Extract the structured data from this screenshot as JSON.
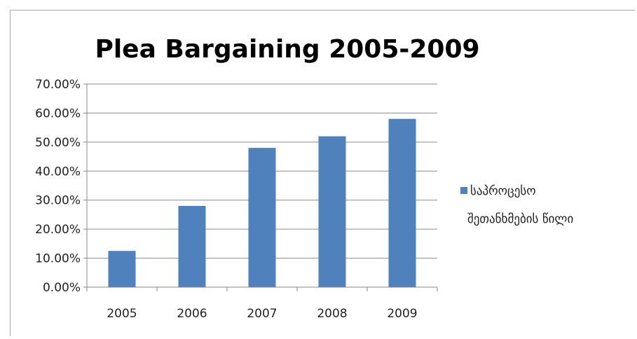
{
  "chart_data": {
    "type": "bar",
    "title": "Plea Bargaining 2005-2009",
    "categories": [
      "2005",
      "2006",
      "2007",
      "2008",
      "2009"
    ],
    "series": [
      {
        "name": "საპროცესო შეთანხმების წილი",
        "name_lines": [
          "საპროცესო",
          "შეთანხმების წილი"
        ],
        "values": [
          0.125,
          0.28,
          0.48,
          0.52,
          0.58
        ],
        "color": "#4f81bd"
      }
    ],
    "ylim": [
      0,
      0.7
    ],
    "yticks": [
      0,
      0.1,
      0.2,
      0.3,
      0.4,
      0.5,
      0.6,
      0.7
    ],
    "ytick_labels": [
      "0.00%",
      "10.00%",
      "20.00%",
      "30.00%",
      "40.00%",
      "50.00%",
      "60.00%",
      "70.00%"
    ],
    "grid": true,
    "legend_position": "right"
  }
}
